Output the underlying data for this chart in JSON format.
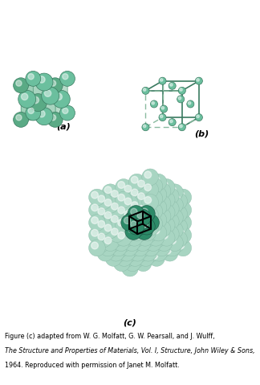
{
  "bg_color": "#ffffff",
  "sphere_face_light": "#a8d5c2",
  "sphere_face_mid": "#6bbf9e",
  "sphere_face_dark": "#3a8a65",
  "sphere_edge": "#3a7a60",
  "cube_face_color": "#7bbf9e",
  "cube_edge_color": "#3a8a65",
  "line_solid_color": "#3a7a60",
  "line_dash_color": "#8abba0",
  "highlight_color": "#2d8a68",
  "highlight_edge": "#1a5040",
  "unit_cell_line": "#000000",
  "label_a": "(a)",
  "label_b": "(b)",
  "label_c": "(c)",
  "caption_line1": "Figure (c) adapted from W. G. Molfatt, G. W. Pearsall, and J. Wulff,",
  "caption_line2": "The Structure and Properties of Materials, Vol. I, Structure, John Wiley & Sons,",
  "caption_line3": "1964. Reproduced with permission of Janet M. Molfatt.",
  "caption_fontsize": 5.8,
  "label_fontsize": 8,
  "figwidth": 3.24,
  "figheight": 4.79,
  "dpi": 100
}
